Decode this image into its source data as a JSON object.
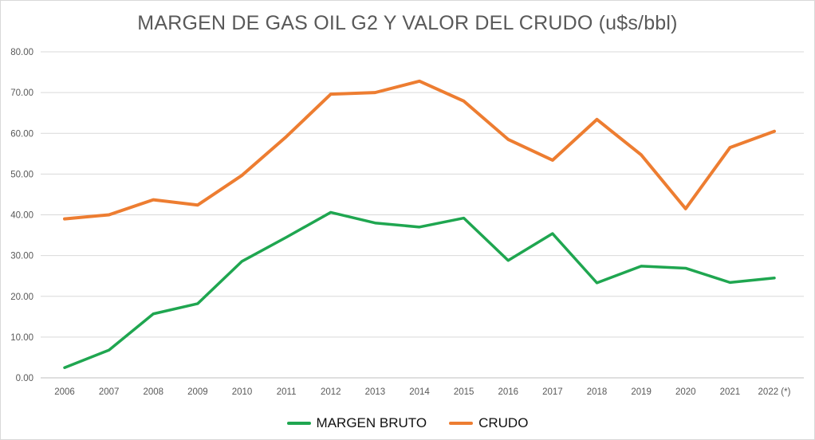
{
  "chart_data": {
    "type": "line",
    "title": "MARGEN DE GAS OIL G2 Y VALOR DEL CRUDO (u$s/bbl)",
    "categories": [
      "2006",
      "2007",
      "2008",
      "2009",
      "2010",
      "2011",
      "2012",
      "2013",
      "2014",
      "2015",
      "2016",
      "2017",
      "2018",
      "2019",
      "2020",
      "2021",
      "2022 (*)"
    ],
    "series": [
      {
        "name": "MARGEN BRUTO",
        "color": "#1fa650",
        "stroke_width": 3.5,
        "values": [
          2.5,
          6.8,
          15.7,
          18.2,
          28.6,
          34.5,
          40.6,
          38.0,
          37.0,
          39.2,
          28.8,
          35.4,
          23.3,
          27.4,
          26.9,
          23.4,
          24.5
        ]
      },
      {
        "name": "CRUDO",
        "color": "#ed7d31",
        "stroke_width": 4,
        "values": [
          39.0,
          40.0,
          43.7,
          42.4,
          49.7,
          59.2,
          69.6,
          70.0,
          72.8,
          67.9,
          58.5,
          53.4,
          63.4,
          54.7,
          41.5,
          56.5,
          60.5
        ]
      },
      {
        "name": "",
        "color": "",
        "stroke_width": 0,
        "values": []
      }
    ],
    "ylim": [
      0,
      80
    ],
    "ytick_step": 10,
    "ytick_labels": [
      "0.00",
      "10.00",
      "20.00",
      "30.00",
      "40.00",
      "50.00",
      "60.00",
      "70.00",
      "80.00"
    ],
    "xlabel": "",
    "ylabel": "",
    "grid": true,
    "legend_position": "bottom"
  },
  "style": {
    "gridline_color": "#d9d9d9",
    "axis_line_color": "#bfbfbf",
    "tick_label_color": "#595959",
    "title_color": "#595959",
    "legend_text_color": "#111111",
    "background": "#ffffff",
    "border_color": "#d9d9d9"
  }
}
